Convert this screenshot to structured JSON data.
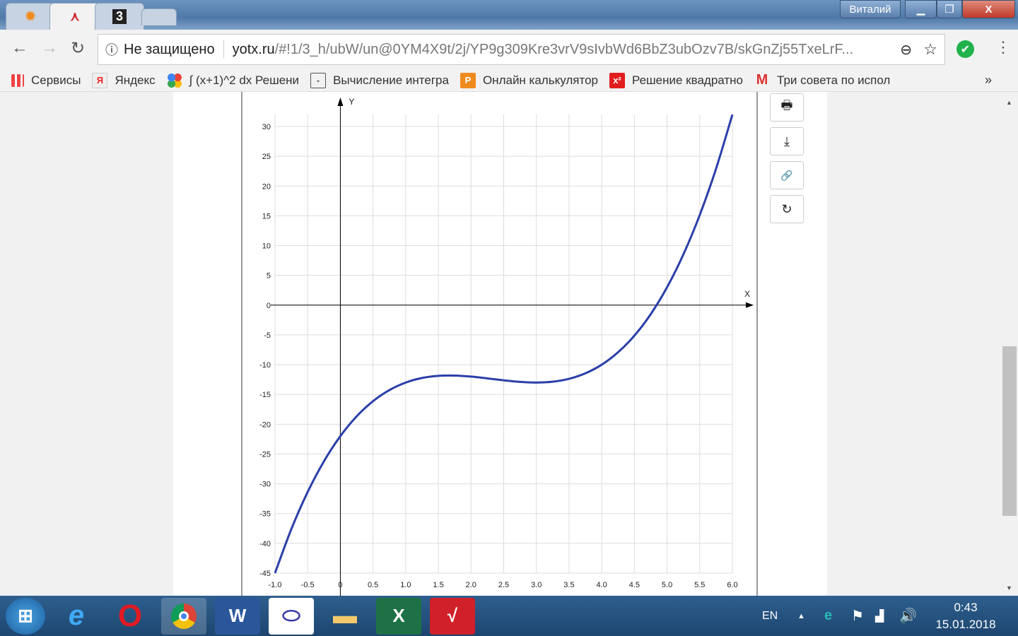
{
  "window": {
    "user": "Виталий",
    "minimize": "▁",
    "restore": "❐",
    "close": "X"
  },
  "tabs": [
    {
      "icon": "sun-icon",
      "glyph": "✹"
    },
    {
      "icon": "graph-icon",
      "glyph": "⋏",
      "active": true
    },
    {
      "icon": "z-icon",
      "glyph": "3"
    },
    {
      "icon": "new-tab-icon",
      "glyph": ""
    }
  ],
  "toolbar": {
    "security": "Не защищено",
    "url_domain": "yotx.ru",
    "url_path": "/#!1/3_h/ubW/un@0YM4X9t/2j/YP9g309Kre3vrV9sIvbWd6BbZ3ubOzv7B/skGnZj55TxeLrF..."
  },
  "bookmarks": [
    {
      "label": "Сервисы",
      "icon": "apps-icon"
    },
    {
      "label": "Яндекс",
      "icon": "yandex-icon"
    },
    {
      "label": "∫ (x+1)^2 dx Решени",
      "icon": "google-dots-icon"
    },
    {
      "label": "Вычисление интегра",
      "icon": "page-icon"
    },
    {
      "label": "Онлайн калькулятор",
      "icon": "calculator-icon"
    },
    {
      "label": "Решение квадратно",
      "icon": "x2-icon"
    },
    {
      "label": "Три совета по испол",
      "icon": "gmail-icon"
    }
  ],
  "bookmarks_more": "»",
  "chart_tools": [
    {
      "icon": "print-icon",
      "glyph": "🖶"
    },
    {
      "icon": "download-icon",
      "glyph": "⤓"
    },
    {
      "icon": "link-icon",
      "glyph": "🔗"
    },
    {
      "icon": "share-icon",
      "glyph": "↻"
    }
  ],
  "chart_data": {
    "type": "line",
    "xlabel": "X",
    "ylabel": "Y",
    "xlim": [
      -1,
      6
    ],
    "ylim": [
      -45,
      30
    ],
    "xticks": [
      "-1.0",
      "-0.5",
      "0",
      "0.5",
      "1.0",
      "1.5",
      "2.0",
      "2.5",
      "3.0",
      "3.5",
      "4.0",
      "4.5",
      "5.0",
      "5.5",
      "6.0"
    ],
    "yticks": [
      "30",
      "25",
      "20",
      "15",
      "10",
      "5",
      "0",
      "-5",
      "-10",
      "-15",
      "-20",
      "-25",
      "-30",
      "-35",
      "-40",
      "-45"
    ],
    "grid": true,
    "color": "#2b3fa8",
    "series": [
      {
        "x": [
          -1,
          -0.75,
          -0.5,
          -0.25,
          0,
          0.25,
          0.5,
          0.75,
          1,
          1.25,
          1.5,
          1.75,
          2,
          2.25,
          2.5,
          2.75,
          3,
          3.25,
          3.5,
          3.75,
          4,
          4.25,
          4.5,
          4.75,
          5,
          5.25,
          5.5,
          5.75,
          6
        ],
        "y": [
          -45,
          -37.61,
          -31.375,
          -26.2,
          -22,
          -18.67,
          -16.125,
          -14.27,
          -13,
          -12.23,
          -11.875,
          -11.83,
          -12,
          -12.3,
          -12.625,
          -12.89,
          -13,
          -12.86,
          -12.375,
          -11.45,
          -10,
          -7.92,
          -5.125,
          -1.52,
          3,
          8.52,
          15.125,
          22.92,
          32
        ]
      }
    ]
  },
  "taskbar": {
    "apps": [
      "start",
      "ie",
      "opera",
      "chrome",
      "word",
      "geogebra",
      "explorer",
      "excel",
      "app"
    ],
    "lang": "EN",
    "time": "0:43",
    "date": "15.01.2018"
  }
}
